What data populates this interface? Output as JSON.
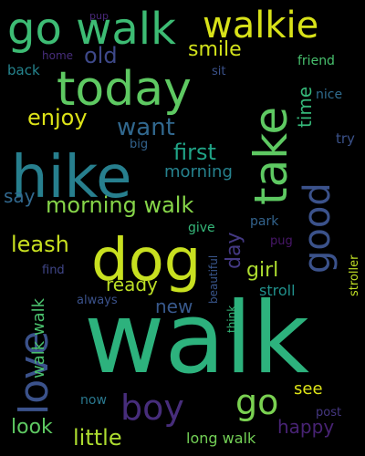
{
  "cloud": {
    "background": "#000000",
    "words": [
      {
        "text": "walk",
        "color": "#2db27d",
        "rot": 0
      },
      {
        "text": "hike",
        "color": "#277f8e",
        "rot": 0
      },
      {
        "text": "dog",
        "color": "#c8e020",
        "rot": 0
      },
      {
        "text": "take",
        "color": "#5ec962",
        "rot": -90
      },
      {
        "text": "today",
        "color": "#5ec962",
        "rot": 0
      },
      {
        "text": "go walk",
        "color": "#3dbc74",
        "rot": 0
      },
      {
        "text": "walkie",
        "color": "#d8e219",
        "rot": 0
      },
      {
        "text": "love",
        "color": "#3b528b",
        "rot": -90
      },
      {
        "text": "good",
        "color": "#3b528b",
        "rot": -90
      },
      {
        "text": "go",
        "color": "#7ad151",
        "rot": 0
      },
      {
        "text": "boy",
        "color": "#472d7b",
        "rot": 0
      },
      {
        "text": "little",
        "color": "#addc30",
        "rot": 0
      },
      {
        "text": "enjoy",
        "color": "#dde318",
        "rot": 0
      },
      {
        "text": "want",
        "color": "#31688e",
        "rot": 0
      },
      {
        "text": "first",
        "color": "#20a386",
        "rot": 0
      },
      {
        "text": "morning walk",
        "color": "#86d549",
        "rot": 0
      },
      {
        "text": "leash",
        "color": "#c8e020",
        "rot": 0
      },
      {
        "text": "girl",
        "color": "#addc30",
        "rot": 0
      },
      {
        "text": "happy",
        "color": "#482374",
        "rot": 0
      },
      {
        "text": "smile",
        "color": "#d2e21b",
        "rot": 0
      },
      {
        "text": "old",
        "color": "#3e4989",
        "rot": 0
      },
      {
        "text": "time",
        "color": "#35b779",
        "rot": -90
      },
      {
        "text": "morning",
        "color": "#26828e",
        "rot": 0
      },
      {
        "text": "day",
        "color": "#443983",
        "rot": -90
      },
      {
        "text": "say",
        "color": "#31688e",
        "rot": 0
      },
      {
        "text": "ready",
        "color": "#bddf26",
        "rot": 0
      },
      {
        "text": "new",
        "color": "#38598c",
        "rot": 0
      },
      {
        "text": "walk walk",
        "color": "#4ac16d",
        "rot": -90
      },
      {
        "text": "look",
        "color": "#5ec962",
        "rot": 0
      },
      {
        "text": "long walk",
        "color": "#73d056",
        "rot": 0
      },
      {
        "text": "see",
        "color": "#dde318",
        "rot": 0
      },
      {
        "text": "stroll",
        "color": "#21918c",
        "rot": 0
      },
      {
        "text": "back",
        "color": "#25848e",
        "rot": 0
      },
      {
        "text": "friend",
        "color": "#48c16e",
        "rot": 0
      },
      {
        "text": "nice",
        "color": "#2f6c8e",
        "rot": 0
      },
      {
        "text": "try",
        "color": "#3b528b",
        "rot": 0
      },
      {
        "text": "park",
        "color": "#33638d",
        "rot": 0
      },
      {
        "text": "give",
        "color": "#35b779",
        "rot": 0
      },
      {
        "text": "stroller",
        "color": "#c0df25",
        "rot": -90
      },
      {
        "text": "pug",
        "color": "#481769",
        "rot": 0
      },
      {
        "text": "find",
        "color": "#404688",
        "rot": 0
      },
      {
        "text": "always",
        "color": "#3b528b",
        "rot": 0
      },
      {
        "text": "beautiful",
        "color": "#39568c",
        "rot": -90
      },
      {
        "text": "think",
        "color": "#35b779",
        "rot": -90
      },
      {
        "text": "now",
        "color": "#2a788e",
        "rot": 0
      },
      {
        "text": "post",
        "color": "#453781",
        "rot": 0
      },
      {
        "text": "home",
        "color": "#472d7b",
        "rot": 0
      },
      {
        "text": "sit",
        "color": "#3b528b",
        "rot": 0
      },
      {
        "text": "big",
        "color": "#33638d",
        "rot": 0
      },
      {
        "text": "pup",
        "color": "#482878",
        "rot": 0
      }
    ]
  }
}
